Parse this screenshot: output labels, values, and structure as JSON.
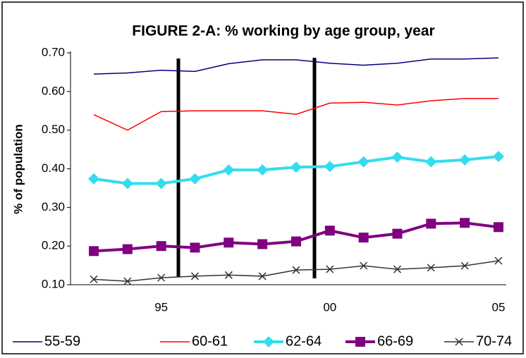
{
  "chart_data": {
    "type": "line",
    "title": "FIGURE 2-A:  % working by age group, year",
    "y_label": "% of population",
    "categories": [
      null,
      null,
      "95",
      null,
      null,
      null,
      null,
      "00",
      null,
      null,
      null,
      null,
      "05"
    ],
    "ylim": [
      0.1,
      0.7
    ],
    "yticks": [
      {
        "value": 0.1,
        "label": "0.10"
      },
      {
        "value": 0.2,
        "label": "0.20"
      },
      {
        "value": 0.3,
        "label": "0.30"
      },
      {
        "value": 0.4,
        "label": "0.40"
      },
      {
        "value": 0.5,
        "label": "0.50"
      },
      {
        "value": 0.6,
        "label": "0.60"
      },
      {
        "value": 0.7,
        "label": "0.70"
      }
    ],
    "legend": "bottom",
    "series": [
      {
        "name": "55-59",
        "color": "#000080",
        "line_width": 1.5,
        "marker": "none",
        "values": [
          0.645,
          0.648,
          0.655,
          0.652,
          0.672,
          0.682,
          0.682,
          0.673,
          0.668,
          0.673,
          0.684,
          0.684,
          0.687
        ]
      },
      {
        "name": "60-61",
        "color": "#ff0000",
        "line_width": 1.5,
        "marker": "none",
        "values": [
          0.54,
          0.5,
          0.548,
          0.55,
          0.55,
          0.55,
          0.541,
          0.57,
          0.572,
          0.565,
          0.576,
          0.582,
          0.582
        ]
      },
      {
        "name": "62-64",
        "color": "#33ddee",
        "line_width": 4,
        "marker": "diamond",
        "values": [
          0.374,
          0.362,
          0.362,
          0.374,
          0.397,
          0.397,
          0.404,
          0.406,
          0.418,
          0.43,
          0.418,
          0.423,
          0.432
        ]
      },
      {
        "name": "66-69",
        "color": "#800080",
        "line_width": 4,
        "marker": "square",
        "values": [
          0.187,
          0.192,
          0.2,
          0.196,
          0.209,
          0.205,
          0.212,
          0.24,
          0.222,
          0.232,
          0.258,
          0.26,
          0.249
        ]
      },
      {
        "name": "70-74",
        "color": "#333333",
        "line_width": 1.5,
        "marker": "x",
        "values": [
          0.114,
          0.109,
          0.118,
          0.122,
          0.125,
          0.122,
          0.138,
          0.14,
          0.149,
          0.14,
          0.144,
          0.149,
          0.162
        ]
      }
    ]
  }
}
